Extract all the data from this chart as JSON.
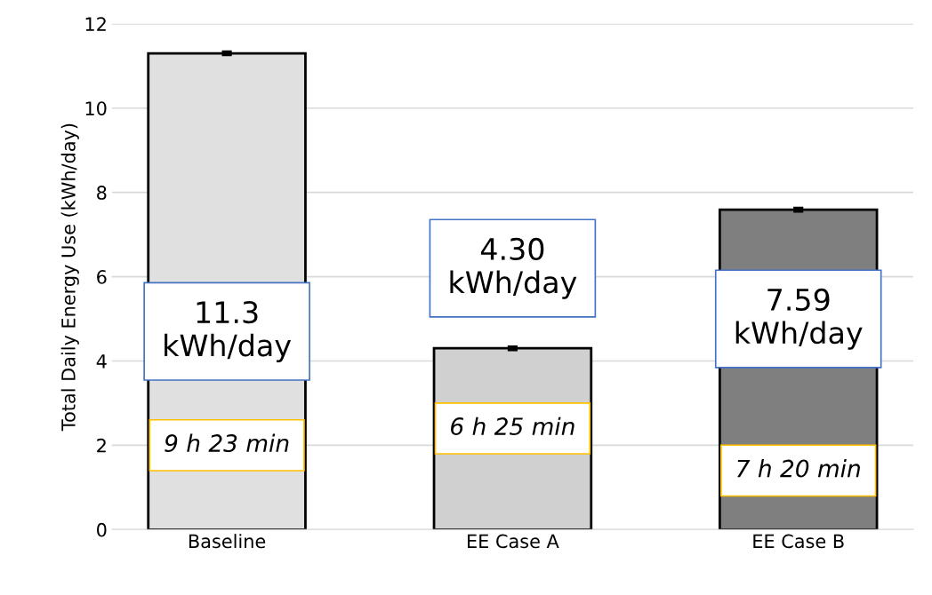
{
  "chart_data": {
    "type": "bar",
    "ylabel": "Total Daily Energy Use (kWh/day)",
    "categories": [
      "Baseline",
      "EE Case A",
      "EE Case B"
    ],
    "values": [
      11.3,
      4.3,
      7.59
    ],
    "colors": [
      "#e0e0e0",
      "#d0d0d0",
      "#7f7f7f"
    ],
    "errors": [
      0.04,
      0.04,
      0.04
    ],
    "value_labels": [
      "11.3\nkWh/day",
      "4.30\nkWh/day",
      "7.59\nkWh/day"
    ],
    "annotations": [
      "9 h 23 min",
      "6 h 25 min",
      "7 h 20 min"
    ],
    "ylim": [
      0,
      12
    ],
    "yticks": [
      0,
      2,
      4,
      6,
      8,
      10,
      12
    ],
    "grid": "y",
    "legend": false
  }
}
